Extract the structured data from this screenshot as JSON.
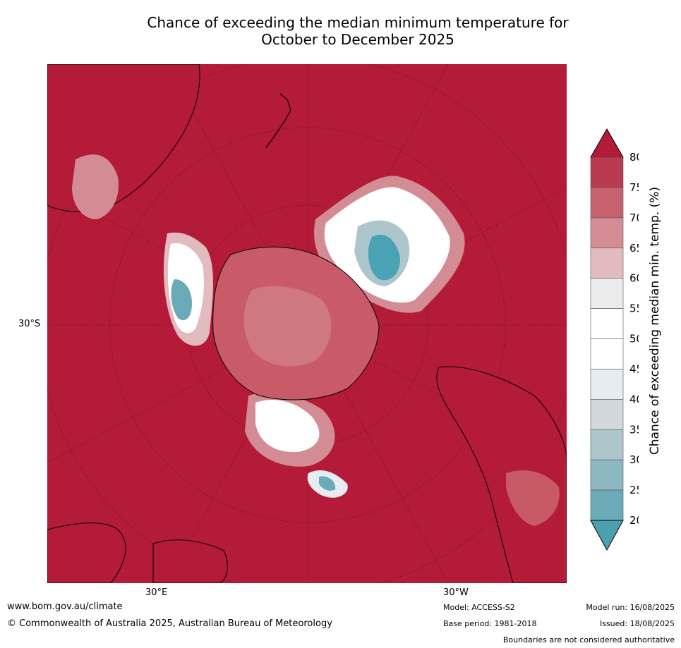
{
  "title_line1": "Chance of exceeding the median minimum temperature for",
  "title_line2": "October to December 2025",
  "map": {
    "background_color": "#b31b38",
    "labels": {
      "lat": "30°S",
      "lon_e": "30°E",
      "lon_w": "30°W"
    },
    "regions": [
      {
        "name": "east-south-america",
        "color": "#c85a66"
      },
      {
        "name": "atlantic-anomaly",
        "color": "#4aa3b5"
      },
      {
        "name": "indian-ocean-anomaly",
        "color": "#4aa3b5"
      },
      {
        "name": "pacific-anomaly",
        "color": "#ffffff"
      },
      {
        "name": "antarctica",
        "color": "#c95b68"
      }
    ]
  },
  "colorbar": {
    "title": "Chance of exceeding median min. temp. (%)",
    "ticks": [
      "80",
      "75",
      "70",
      "65",
      "60",
      "55",
      "50",
      "45",
      "40",
      "35",
      "30",
      "25",
      "20"
    ],
    "bands": [
      "#b93a4e",
      "#c6616d",
      "#d48c94",
      "#e2bbbf",
      "#ececec",
      "#ffffff",
      "#ffffff",
      "#e6ecef",
      "#d0d8db",
      "#adc6cc",
      "#8db7c1",
      "#6baab7"
    ],
    "over_color": "#b31b38",
    "under_color": "#4a9fb0"
  },
  "footer": {
    "url": "www.bom.gov.au/climate",
    "copyright": "© Commonwealth of Australia 2025, Australian Bureau of Meteorology",
    "model": "Model: ACCESS-S2",
    "base_period": "Base period: 1981-2018",
    "model_run": "Model run: 16/08/2025",
    "issued": "Issued: 18/08/2025",
    "disclaimer": "Boundaries are not considered authoritative"
  }
}
